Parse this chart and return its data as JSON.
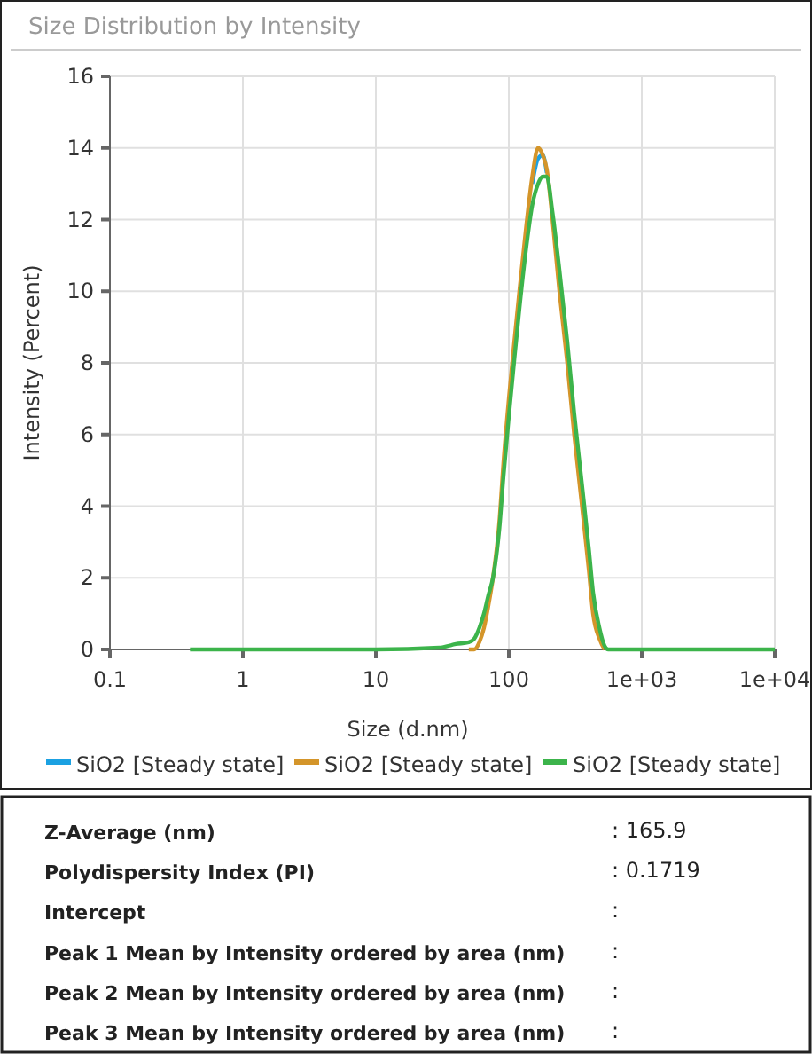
{
  "chart_data": [
    {
      "type": "line",
      "title": "Size Distribution by Intensity",
      "xlabel": "Size (d.nm)",
      "ylabel": "Intensity (Percent)",
      "log": "x",
      "grid": true,
      "legend": "bottom",
      "xlim": [
        0.1,
        10000
      ],
      "xticks": [
        0.1,
        1,
        10,
        {
          "value": 1000,
          "label": "1e+03"
        },
        {
          "value": 10000,
          "label": "1e+04"
        },
        100
      ],
      "ylim": [
        0,
        16
      ],
      "yticks": [
        0,
        2,
        4,
        6,
        8,
        10,
        12,
        14,
        16
      ],
      "x": [
        0.4,
        1,
        10,
        30,
        40,
        50,
        55,
        60,
        65,
        70,
        76,
        85,
        91,
        100,
        110,
        120,
        135,
        150,
        166,
        180,
        193,
        213,
        240,
        275,
        310,
        355,
        400,
        430,
        480,
        525,
        560,
        1000,
        10000
      ],
      "series": [
        {
          "name": "SiO2 [Steady state]",
          "color": "#1ba1e2",
          "values": [
            null,
            null,
            null,
            null,
            null,
            null,
            null,
            null,
            null,
            null,
            null,
            null,
            null,
            null,
            null,
            null,
            null,
            13,
            13.7,
            13.8,
            13.3,
            null,
            null,
            null,
            null,
            null,
            null,
            null,
            null,
            null,
            null,
            null,
            null
          ]
        },
        {
          "name": "SiO2 [Steady state]",
          "color": "#d4952a",
          "values": [
            null,
            null,
            null,
            null,
            null,
            0,
            0,
            0.2,
            0.6,
            1.2,
            2,
            3.6,
            5.2,
            7,
            8.6,
            10,
            11.8,
            13.2,
            14,
            13.8,
            13.4,
            12,
            10,
            8,
            6,
            4,
            2.2,
            1,
            0.3,
            0,
            null,
            null,
            null
          ]
        },
        {
          "name": "SiO2 [Steady state]",
          "color": "#3cb44b",
          "values": [
            0,
            0,
            0,
            0.05,
            0.15,
            0.2,
            0.3,
            0.6,
            1,
            1.5,
            2,
            3.4,
            4.8,
            6.5,
            8.1,
            9.5,
            11.2,
            12.4,
            13,
            13.2,
            13.2,
            12.2,
            10.6,
            8.6,
            6.6,
            4.6,
            2.8,
            1.6,
            0.6,
            0.1,
            0,
            0,
            0
          ]
        }
      ]
    },
    {
      "type": "other",
      "annotations": [
        "Z-Average (nm)",
        ": 165.9",
        "Polydispersity Index (PI)",
        ": 0.1719",
        "Intercept",
        ":",
        "Peak 1 Mean by Intensity ordered by area (nm)",
        ":",
        "Peak 2 Mean by Intensity ordered by area (nm)",
        ":",
        "Peak 3 Mean by Intensity ordered by area (nm)",
        ":"
      ]
    }
  ]
}
